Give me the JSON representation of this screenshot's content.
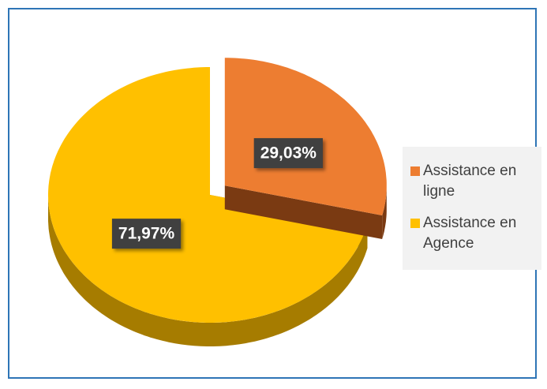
{
  "chart_data": {
    "type": "pie",
    "categories": [
      "Assistance en ligne",
      "Assistance en Agence"
    ],
    "values": [
      29.03,
      71.97
    ],
    "value_labels": [
      "29,03%",
      "71,97%"
    ],
    "colors": [
      "#ED7D31",
      "#FFC000"
    ],
    "side_colors": [
      "#7a3a12",
      "#a67c00"
    ],
    "explode": [
      1,
      0
    ]
  }
}
